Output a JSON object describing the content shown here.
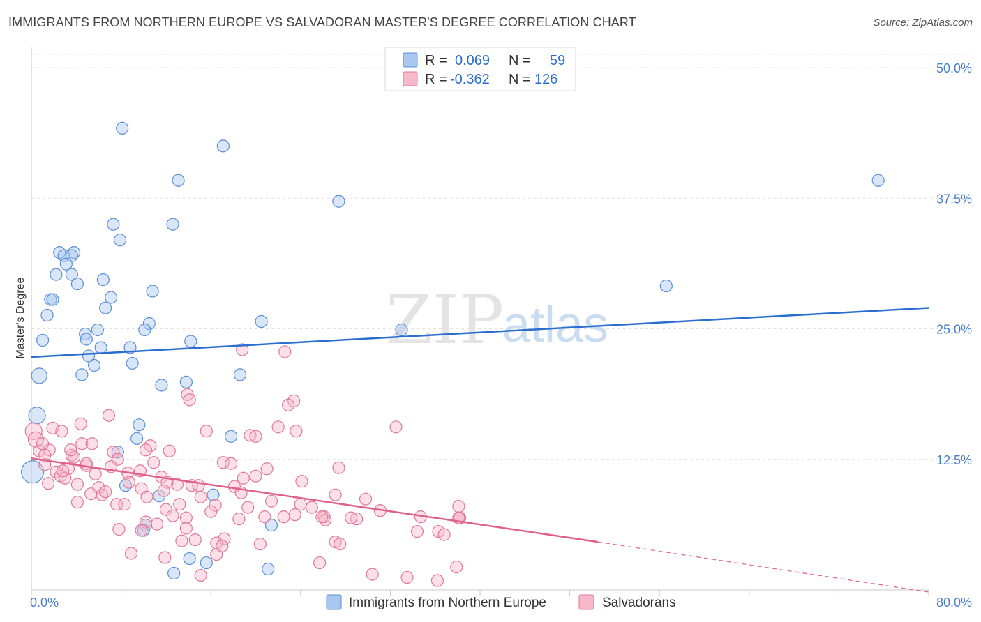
{
  "header": {
    "title": "IMMIGRANTS FROM NORTHERN EUROPE VS SALVADORAN MASTER'S DEGREE CORRELATION CHART",
    "source": "Source: ZipAtlas.com"
  },
  "watermark": {
    "part1": "ZIP",
    "part2": "atlas"
  },
  "legend": {
    "rows": [
      {
        "r_label": "R =",
        "r_value": "0.069",
        "n_label": "N =",
        "n_value": "59",
        "color": "#a8c8f0"
      },
      {
        "r_label": "R =",
        "r_value": "-0.362",
        "n_label": "N =",
        "n_value": "126",
        "color": "#f8b8cc"
      }
    ]
  },
  "bottom_legend": {
    "items": [
      {
        "label": "Immigrants from Northern Europe",
        "color": "#a8c8f0"
      },
      {
        "label": "Salvadorans",
        "color": "#f8b8cc"
      }
    ]
  },
  "chart_data": {
    "type": "scatter",
    "title": "IMMIGRANTS FROM NORTHERN EUROPE VS SALVADORAN MASTER'S DEGREE CORRELATION CHART",
    "xlabel": "",
    "ylabel": "Master's Degree",
    "xlim": [
      0,
      80
    ],
    "ylim": [
      0,
      50
    ],
    "x_tick_labels": [
      "0.0%",
      "80.0%"
    ],
    "y_ticks": [
      12.5,
      25.0,
      37.5,
      50.0
    ],
    "y_tick_labels": [
      "12.5%",
      "25.0%",
      "37.5%",
      "50.0%"
    ],
    "grid": true,
    "series": [
      {
        "name": "Immigrants from Northern Europe",
        "color": "#a8c8f0",
        "stroke": "#5a8fd6",
        "trend_color": "#2a6fcf",
        "trend": {
          "x": [
            0,
            80
          ],
          "y": [
            22.3,
            27.0
          ]
        },
        "points": [
          [
            8.1,
            44.2
          ],
          [
            17.1,
            42.5
          ],
          [
            13.1,
            39.2
          ],
          [
            75.5,
            39.2
          ],
          [
            27.4,
            37.2
          ],
          [
            7.3,
            35.0
          ],
          [
            12.6,
            35.0
          ],
          [
            7.9,
            33.5
          ],
          [
            2.5,
            32.3
          ],
          [
            3.8,
            32.3
          ],
          [
            2.9,
            32.0
          ],
          [
            3.6,
            32.0
          ],
          [
            3.1,
            31.2
          ],
          [
            2.2,
            30.2
          ],
          [
            3.6,
            30.2
          ],
          [
            6.4,
            29.7
          ],
          [
            4.1,
            29.3
          ],
          [
            56.6,
            29.1
          ],
          [
            10.8,
            28.6
          ],
          [
            7.1,
            28.0
          ],
          [
            1.7,
            27.8
          ],
          [
            1.9,
            27.8
          ],
          [
            6.6,
            27.0
          ],
          [
            1.4,
            26.3
          ],
          [
            20.5,
            25.7
          ],
          [
            10.5,
            25.5
          ],
          [
            33.0,
            24.9
          ],
          [
            10.1,
            24.9
          ],
          [
            5.9,
            24.9
          ],
          [
            4.8,
            24.5
          ],
          [
            4.9,
            24.0
          ],
          [
            1.0,
            23.9
          ],
          [
            14.2,
            23.8
          ],
          [
            6.2,
            23.2
          ],
          [
            8.8,
            23.2
          ],
          [
            5.1,
            22.4
          ],
          [
            9.0,
            21.7
          ],
          [
            5.6,
            21.5
          ],
          [
            4.5,
            20.6
          ],
          [
            18.6,
            20.6
          ],
          [
            0.7,
            20.5
          ],
          [
            13.8,
            19.9
          ],
          [
            11.6,
            19.6
          ],
          [
            0.5,
            16.7
          ],
          [
            9.6,
            15.8
          ],
          [
            17.8,
            14.7
          ],
          [
            9.4,
            14.5
          ],
          [
            7.7,
            13.2
          ],
          [
            0.1,
            11.3
          ],
          [
            8.4,
            10.0
          ],
          [
            11.4,
            9.0
          ],
          [
            16.2,
            9.1
          ],
          [
            10.2,
            6.2
          ],
          [
            10.0,
            5.7
          ],
          [
            21.4,
            6.2
          ],
          [
            14.1,
            3.0
          ],
          [
            15.6,
            2.6
          ],
          [
            21.1,
            2.0
          ],
          [
            12.7,
            1.6
          ]
        ],
        "sizes": {
          "0.5|16.7": 12,
          "0.1|11.3": 16,
          "0.7|20.5": 11
        }
      },
      {
        "name": "Salvadorans",
        "color": "#f8b8cc",
        "stroke": "#e07898",
        "trend_color": "#e0608a",
        "trend": {
          "x": [
            0,
            50.5
          ],
          "y": [
            12.6,
            4.6
          ]
        },
        "trend_dashed": {
          "x": [
            50.5,
            80
          ],
          "y": [
            4.6,
            -0.2
          ]
        },
        "points": [
          [
            18.8,
            23.0
          ],
          [
            22.6,
            22.8
          ],
          [
            13.9,
            18.7
          ],
          [
            14.1,
            18.2
          ],
          [
            23.4,
            18.1
          ],
          [
            22.9,
            17.7
          ],
          [
            6.9,
            16.7
          ],
          [
            4.4,
            15.9
          ],
          [
            22.0,
            15.6
          ],
          [
            32.5,
            15.6
          ],
          [
            1.9,
            15.5
          ],
          [
            0.2,
            15.2
          ],
          [
            2.7,
            15.2
          ],
          [
            15.6,
            15.2
          ],
          [
            23.6,
            15.2
          ],
          [
            19.5,
            14.8
          ],
          [
            20.0,
            14.7
          ],
          [
            0.4,
            14.4
          ],
          [
            4.5,
            14.0
          ],
          [
            5.4,
            14.0
          ],
          [
            10.6,
            13.8
          ],
          [
            10.2,
            13.4
          ],
          [
            12.3,
            13.3
          ],
          [
            0.7,
            13.3
          ],
          [
            7.3,
            13.2
          ],
          [
            1.6,
            13.4
          ],
          [
            1.2,
            12.9
          ],
          [
            3.6,
            12.9
          ],
          [
            3.8,
            12.7
          ],
          [
            7.7,
            12.5
          ],
          [
            10.9,
            12.2
          ],
          [
            17.1,
            12.2
          ],
          [
            17.8,
            12.1
          ],
          [
            1.2,
            12.0
          ],
          [
            4.9,
            11.9
          ],
          [
            7.1,
            11.8
          ],
          [
            3.3,
            11.6
          ],
          [
            21.0,
            11.6
          ],
          [
            27.4,
            11.7
          ],
          [
            2.2,
            11.3
          ],
          [
            9.7,
            11.4
          ],
          [
            8.6,
            11.2
          ],
          [
            5.7,
            11.1
          ],
          [
            2.6,
            10.9
          ],
          [
            3.0,
            10.7
          ],
          [
            11.6,
            10.8
          ],
          [
            18.9,
            10.7
          ],
          [
            8.7,
            10.3
          ],
          [
            24.1,
            10.4
          ],
          [
            4.1,
            10.1
          ],
          [
            14.3,
            10.0
          ],
          [
            13.0,
            10.1
          ],
          [
            12.1,
            10.3
          ],
          [
            14.9,
            10.0
          ],
          [
            1.5,
            10.2
          ],
          [
            6.0,
            9.8
          ],
          [
            18.1,
            9.9
          ],
          [
            9.8,
            9.7
          ],
          [
            11.8,
            9.5
          ],
          [
            6.3,
            9.1
          ],
          [
            5.3,
            9.2
          ],
          [
            15.1,
            8.9
          ],
          [
            27.1,
            9.1
          ],
          [
            29.8,
            8.7
          ],
          [
            21.4,
            8.5
          ],
          [
            7.6,
            8.2
          ],
          [
            13.2,
            8.2
          ],
          [
            4.1,
            8.4
          ],
          [
            8.3,
            8.2
          ],
          [
            24.0,
            8.2
          ],
          [
            16.4,
            8.1
          ],
          [
            38.1,
            8.0
          ],
          [
            19.3,
            7.9
          ],
          [
            25.0,
            7.9
          ],
          [
            12.0,
            7.7
          ],
          [
            31.1,
            7.6
          ],
          [
            16.0,
            7.5
          ],
          [
            23.5,
            7.2
          ],
          [
            26.1,
            7.0
          ],
          [
            20.8,
            7.0
          ],
          [
            13.8,
            6.9
          ],
          [
            18.5,
            6.8
          ],
          [
            12.6,
            7.1
          ],
          [
            22.5,
            7.0
          ],
          [
            26.2,
            6.7
          ],
          [
            25.9,
            7.0
          ],
          [
            29.0,
            6.8
          ],
          [
            10.2,
            6.5
          ],
          [
            11.2,
            6.3
          ],
          [
            13.8,
            5.9
          ],
          [
            7.8,
            5.8
          ],
          [
            38.1,
            6.9
          ],
          [
            34.7,
            7.0
          ],
          [
            38.1,
            6.9
          ],
          [
            38.2,
            6.9
          ],
          [
            38.1,
            6.9
          ],
          [
            9.8,
            5.7
          ],
          [
            36.3,
            5.6
          ],
          [
            36.8,
            5.3
          ],
          [
            17.2,
            4.9
          ],
          [
            13.4,
            4.7
          ],
          [
            14.6,
            4.8
          ],
          [
            16.5,
            4.5
          ],
          [
            20.4,
            4.4
          ],
          [
            27.1,
            4.6
          ],
          [
            27.5,
            4.4
          ],
          [
            8.9,
            3.5
          ],
          [
            16.5,
            3.4
          ],
          [
            11.9,
            3.1
          ],
          [
            25.7,
            2.6
          ],
          [
            37.9,
            2.2
          ],
          [
            33.5,
            1.2
          ],
          [
            30.4,
            1.5
          ],
          [
            15.1,
            1.4
          ],
          [
            36.2,
            0.9
          ],
          [
            6.6,
            9.4
          ],
          [
            3.5,
            13.4
          ],
          [
            1.0,
            14.0
          ],
          [
            20.0,
            10.9
          ],
          [
            18.7,
            9.3
          ],
          [
            2.8,
            11.4
          ],
          [
            10.3,
            8.9
          ],
          [
            4.9,
            12.1
          ],
          [
            28.5,
            6.9
          ],
          [
            17.0,
            4.2
          ],
          [
            34.4,
            5.6
          ]
        ],
        "sizes": {
          "0.2|15.2": 12,
          "0.4|14.4": 11
        }
      }
    ]
  }
}
